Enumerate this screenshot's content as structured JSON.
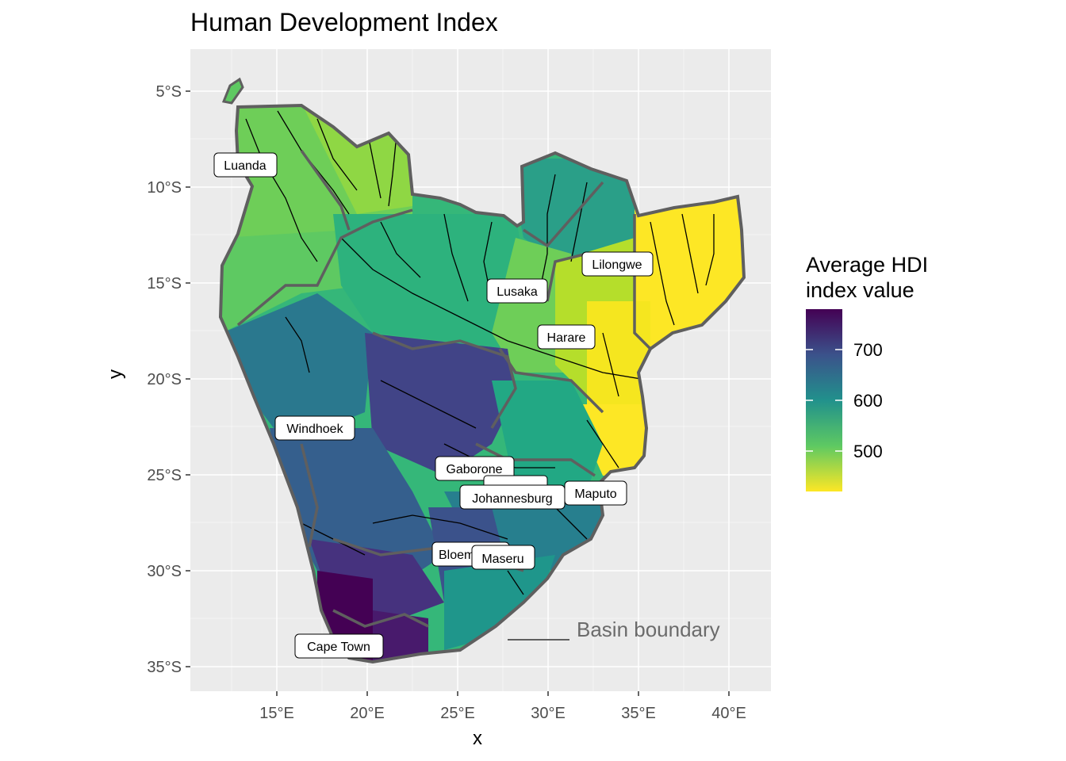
{
  "title": "Human Development Index",
  "xlabel": "x",
  "ylabel": "y",
  "legend": {
    "title_line1": "Average HDI",
    "title_line2": "index value",
    "ticks": [
      "700",
      "600",
      "500"
    ],
    "colors": [
      "#440154",
      "#3b528b",
      "#21918c",
      "#5ec962",
      "#fde725"
    ]
  },
  "x_ticks": [
    "15°E",
    "20°E",
    "25°E",
    "30°E",
    "35°E",
    "40°E"
  ],
  "y_ticks": [
    "5°S",
    "10°S",
    "15°S",
    "20°S",
    "25°S",
    "30°S",
    "35°S"
  ],
  "annotation": "Basin boundary",
  "cities": [
    {
      "name": "Luanda"
    },
    {
      "name": "Lilongwe"
    },
    {
      "name": "Lusaka"
    },
    {
      "name": "Harare"
    },
    {
      "name": "Windhoek"
    },
    {
      "name": "Gaborone"
    },
    {
      "name": "Johannesburg"
    },
    {
      "name": "Maputo"
    },
    {
      "name": "Bloemfontein"
    },
    {
      "name": "Maseru"
    },
    {
      "name": "Cape Town"
    }
  ],
  "colors": {
    "panel": "#ebebeb",
    "grid": "#ffffff",
    "boundary": "#5f5f5f",
    "river": "#000000"
  }
}
